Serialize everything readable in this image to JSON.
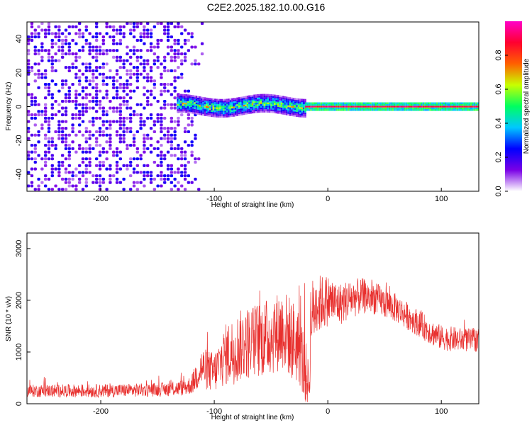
{
  "figure": {
    "title": "C2E2.2025.182.10.00.G16"
  },
  "chart_data": [
    {
      "type": "heatmap",
      "xlabel": "Height of straight line (km)",
      "ylabel": "Frequency (Hz)",
      "xlim": [
        -265,
        133
      ],
      "ylim": [
        -50,
        50
      ],
      "xticks": [
        -200,
        -100,
        0,
        100
      ],
      "yticks": [
        -40,
        -20,
        0,
        20,
        40
      ],
      "grid": false,
      "colorbar": {
        "label": "Normalized spectral amplitude",
        "range": [
          0,
          1
        ],
        "ticks": [
          0,
          0.2,
          0.4,
          0.6,
          0.8
        ],
        "tick_labels": [
          "0.0",
          "0.2",
          "0.4",
          "0.6",
          "0.8"
        ],
        "colormap": [
          "#ffffff",
          "#7a00e6",
          "#0000ff",
          "#00c8ff",
          "#00ff60",
          "#c8ff00",
          "#ff6000",
          "#ff0030",
          "#ff00c8"
        ]
      },
      "regions": [
        {
          "x_from": -265,
          "x_to": -110,
          "description": "broadband noise",
          "amplitude": 0.2
        },
        {
          "x_from": -133,
          "x_to": -20,
          "description": "wide carrier band",
          "center_hz": 0,
          "half_width_hz": 5,
          "amplitude": 0.5
        },
        {
          "x_from": -20,
          "x_to": 133,
          "description": "narrow carrier line",
          "center_hz": 0,
          "half_width_hz": 1,
          "amplitude": 0.95
        }
      ]
    },
    {
      "type": "line",
      "xlabel": "Height of straight line (km)",
      "ylabel": "SNR (10 * v/v)",
      "xlim": [
        -265,
        133
      ],
      "ylim": [
        0,
        3300
      ],
      "xticks": [
        -200,
        -100,
        0,
        100
      ],
      "yticks": [
        0,
        1000,
        2000,
        3000
      ],
      "grid": false,
      "color": "#e8302e",
      "series": [
        {
          "x": [
            -265,
            -200,
            -150,
            -130,
            -120,
            -112,
            -100,
            -90,
            -85,
            -75,
            -60,
            -50,
            -40,
            -30,
            -25,
            -20,
            -16,
            -15,
            -10,
            0,
            10,
            20,
            30,
            40,
            50,
            60,
            70,
            80,
            90,
            95,
            100,
            110,
            120,
            133
          ],
          "baseline": [
            250,
            250,
            270,
            300,
            360,
            700,
            600,
            950,
            1000,
            1150,
            1250,
            1300,
            1450,
            1200,
            1100,
            600,
            350,
            1700,
            1900,
            2000,
            1920,
            2030,
            2080,
            2050,
            1950,
            1850,
            1700,
            1560,
            1400,
            1330,
            1280,
            1250,
            1230,
            1230
          ],
          "spread": [
            120,
            130,
            130,
            150,
            180,
            400,
            400,
            600,
            650,
            700,
            750,
            750,
            800,
            800,
            750,
            700,
            300,
            700,
            600,
            500,
            420,
            380,
            350,
            320,
            300,
            280,
            270,
            260,
            250,
            250,
            240,
            240,
            230,
            230
          ]
        }
      ]
    }
  ]
}
